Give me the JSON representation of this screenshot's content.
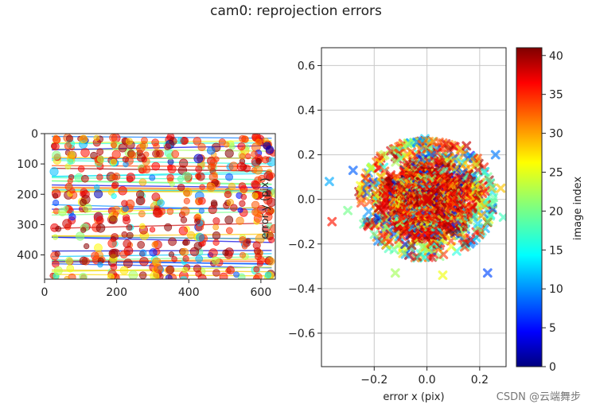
{
  "title": "cam0: reprojection errors",
  "watermark": "CSDN @云端舞步",
  "chart_data": [
    {
      "type": "scatter",
      "subtype": "image-plane-reprojection",
      "xlabel": "",
      "ylabel": "",
      "xlim": [
        0,
        640
      ],
      "ylim": [
        480,
        0
      ],
      "y_inverted": true,
      "xticks": [
        0,
        200,
        400,
        600
      ],
      "yticks": [
        0,
        100,
        200,
        300,
        400
      ],
      "grid": false,
      "rows_y": [
        20,
        40,
        65,
        90,
        115,
        145,
        170,
        200,
        225,
        255,
        285,
        310,
        340,
        365,
        395,
        420,
        450,
        470
      ],
      "cols_x": [
        30,
        70,
        110,
        150,
        190,
        230,
        270,
        310,
        350,
        390,
        430,
        470,
        510,
        550,
        590,
        625
      ],
      "color_encoding": "image index (0–41, jet colormap)",
      "marker": "circle"
    },
    {
      "type": "scatter",
      "subtype": "error-distribution",
      "xlabel": "error x (pix)",
      "ylabel": "error y (pix)",
      "xlim": [
        -0.4,
        0.3
      ],
      "ylim": [
        -0.75,
        0.68
      ],
      "xticks": [
        -0.2,
        0.0,
        0.2
      ],
      "xtick_labels": [
        "−0.2",
        "0.0",
        "0.2"
      ],
      "yticks": [
        -0.6,
        -0.4,
        -0.2,
        0.0,
        0.2,
        0.4,
        0.6
      ],
      "ytick_labels": [
        "−0.6",
        "−0.4",
        "−0.2",
        "0.0",
        "0.2",
        "0.4",
        "0.6"
      ],
      "grid": true,
      "marker": "x",
      "cluster_center": [
        0.0,
        0.0
      ],
      "cluster_radius_x": 0.25,
      "cluster_radius_y": 0.26,
      "outliers": [
        [
          -0.37,
          0.08
        ],
        [
          -0.36,
          -0.1
        ],
        [
          -0.28,
          0.13
        ],
        [
          0.26,
          0.2
        ],
        [
          0.23,
          -0.33
        ],
        [
          0.06,
          -0.34
        ],
        [
          -0.12,
          -0.33
        ],
        [
          0.29,
          -0.08
        ],
        [
          0.28,
          0.05
        ],
        [
          -0.3,
          -0.05
        ],
        [
          0.15,
          0.24
        ]
      ],
      "colorbar": {
        "label": "image index",
        "range": [
          0,
          41
        ],
        "ticks": [
          0,
          5,
          10,
          15,
          20,
          25,
          30,
          35,
          40
        ],
        "colormap": "jet"
      }
    }
  ]
}
